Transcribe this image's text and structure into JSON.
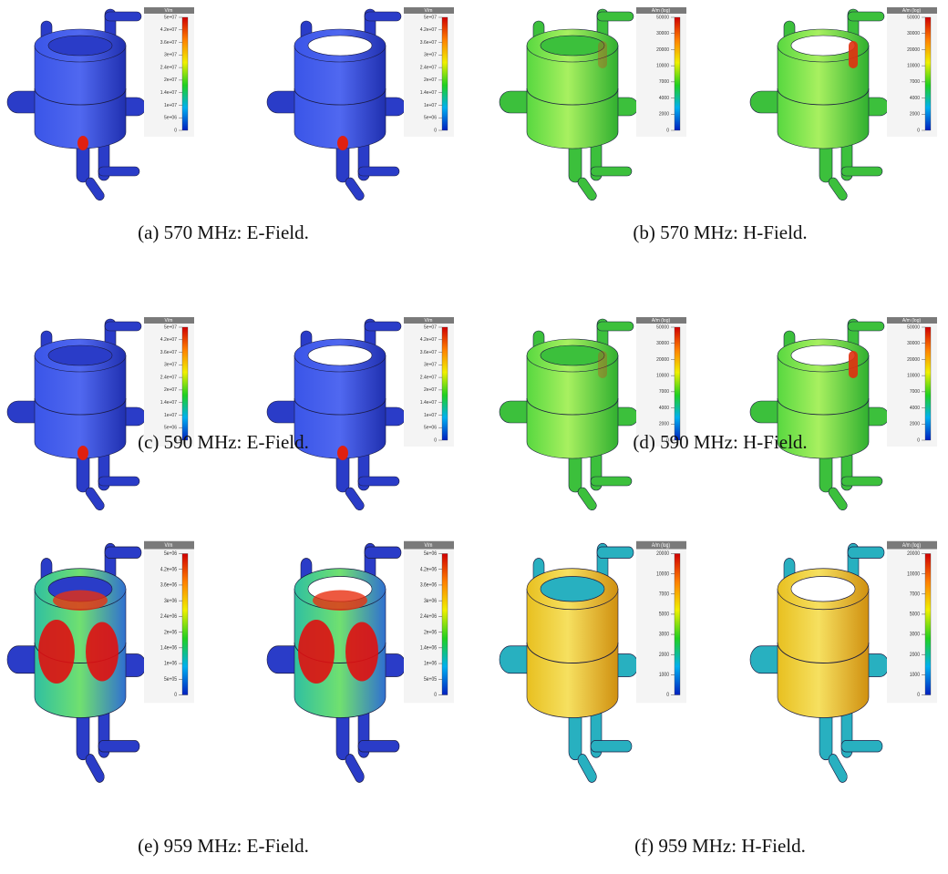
{
  "subfigures": [
    {
      "caption": "(a) 570 MHz: E-Field.",
      "images": [
        {
          "colorbar": {
            "unit": "V/m",
            "labels": [
              "5e+07",
              "4.2e+07",
              "3.6e+07",
              "3e+07",
              "2.4e+07",
              "2e+07",
              "1.4e+07",
              "1e+07",
              "5e+06",
              "0"
            ]
          }
        },
        {
          "colorbar": {
            "unit": "V/m",
            "labels": [
              "5e+07",
              "4.2e+07",
              "3.6e+07",
              "3e+07",
              "2.4e+07",
              "2e+07",
              "1.4e+07",
              "1e+07",
              "5e+06",
              "0"
            ]
          }
        }
      ]
    },
    {
      "caption": "(b) 570 MHz: H-Field.",
      "images": [
        {
          "colorbar": {
            "unit": "A/m (log)",
            "labels": [
              "50000",
              "30000",
              "20000",
              "10000",
              "7000",
              "4000",
              "2000",
              "0"
            ]
          }
        },
        {
          "colorbar": {
            "unit": "A/m (log)",
            "labels": [
              "50000",
              "30000",
              "20000",
              "10000",
              "7000",
              "4000",
              "2000",
              "0"
            ]
          }
        }
      ]
    },
    {
      "caption": "(c) 590 MHz: E-Field.",
      "images": [
        {
          "colorbar": {
            "unit": "V/m",
            "labels": [
              "5e+07",
              "4.2e+07",
              "3.6e+07",
              "3e+07",
              "2.4e+07",
              "2e+07",
              "1.4e+07",
              "1e+07",
              "5e+06",
              "0"
            ]
          }
        },
        {
          "colorbar": {
            "unit": "V/m",
            "labels": [
              "5e+07",
              "4.2e+07",
              "3.6e+07",
              "3e+07",
              "2.4e+07",
              "2e+07",
              "1.4e+07",
              "1e+07",
              "5e+06",
              "0"
            ]
          }
        }
      ]
    },
    {
      "caption": "(d) 590 MHz: H-Field.",
      "images": [
        {
          "colorbar": {
            "unit": "A/m (log)",
            "labels": [
              "50000",
              "30000",
              "20000",
              "10000",
              "7000",
              "4000",
              "2000",
              "0"
            ]
          }
        },
        {
          "colorbar": {
            "unit": "A/m (log)",
            "labels": [
              "50000",
              "30000",
              "20000",
              "10000",
              "7000",
              "4000",
              "2000",
              "0"
            ]
          }
        }
      ]
    },
    {
      "caption": "(e) 959 MHz: E-Field.",
      "images": [
        {
          "colorbar": {
            "unit": "V/m",
            "labels": [
              "5e+06",
              "4.2e+06",
              "3.6e+06",
              "3e+06",
              "2.4e+06",
              "2e+06",
              "1.4e+06",
              "1e+06",
              "5e+05",
              "0"
            ]
          }
        },
        {
          "colorbar": {
            "unit": "V/m",
            "labels": [
              "5e+06",
              "4.2e+06",
              "3.6e+06",
              "3e+06",
              "2.4e+06",
              "2e+06",
              "1.4e+06",
              "1e+06",
              "5e+05",
              "0"
            ]
          }
        }
      ]
    },
    {
      "caption": "(f) 959 MHz: H-Field.",
      "images": [
        {
          "colorbar": {
            "unit": "A/m (log)",
            "labels": [
              "20000",
              "10000",
              "7000",
              "5000",
              "3000",
              "2000",
              "1000",
              "0"
            ]
          }
        },
        {
          "colorbar": {
            "unit": "A/m (log)",
            "labels": [
              "20000",
              "10000",
              "7000",
              "5000",
              "3000",
              "2000",
              "1000",
              "0"
            ]
          }
        }
      ]
    }
  ]
}
